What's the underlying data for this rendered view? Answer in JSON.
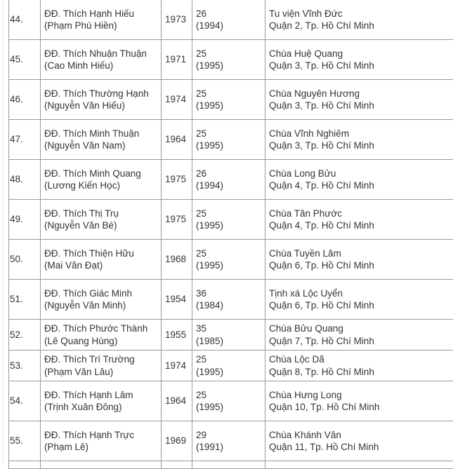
{
  "rows": [
    {
      "no": "44.",
      "title": "ĐĐ. Thích Hạnh Hiếu",
      "lay_name": "(Phạm Phú Hiền)",
      "birth_year": "1973",
      "age": "26",
      "year": "(1994)",
      "temple": "Tu viện Vĩnh Đức",
      "location": "Quận 2, Tp. Hồ Chí Minh"
    },
    {
      "no": "45.",
      "title": "ĐĐ. Thích Nhuận Thuận",
      "lay_name": "(Cao Minh Hiếu)",
      "birth_year": "1971",
      "age": "25",
      "year": "(1995)",
      "temple": "Chùa Huệ Quang",
      "location": "Quận 3, Tp. Hồ Chí Minh"
    },
    {
      "no": "46.",
      "title": "ĐĐ. Thích Thường Hạnh",
      "lay_name": "(Nguyễn Văn Hiếu)",
      "birth_year": "1974",
      "age": "25",
      "year": "(1995)",
      "temple": "Chùa Nguyên Hương",
      "location": "Quận 3, Tp. Hồ Chí Minh"
    },
    {
      "no": "47.",
      "title": "ĐĐ. Thích Minh Thuận",
      "lay_name": "(Nguyễn Văn Nam)",
      "birth_year": "1964",
      "age": "25",
      "year": "(1995)",
      "temple": "Chùa Vĩnh Nghiêm",
      "location": "Quận 3, Tp. Hồ Chí Minh"
    },
    {
      "no": "48.",
      "title": "ĐĐ. Thích Minh Quang",
      "lay_name": "(Lương Kiến Học)",
      "birth_year": "1975",
      "age": "26",
      "year": "(1994)",
      "temple": "Chùa Long Bửu",
      "location": "Quận 4, Tp. Hồ Chí Minh"
    },
    {
      "no": "49.",
      "title": "ĐĐ. Thích Thị Trụ",
      "lay_name": "(Nguyễn Văn Bé)",
      "birth_year": "1975",
      "age": "25",
      "year": "(1995)",
      "temple": "Chùa Tân Phước",
      "location": "Quận 4, Tp. Hồ Chí Minh"
    },
    {
      "no": "50.",
      "title": "ĐĐ. Thích Thiện Hữu",
      "lay_name": "(Mai Văn Đạt)",
      "birth_year": "1968",
      "age": "25",
      "year": "(1995)",
      "temple": "Chùa Tuyền Lâm",
      "location": "Quận 6, Tp. Hồ Chí Minh"
    },
    {
      "no": "51.",
      "title": "ĐĐ. Thích Giác Minh",
      "lay_name": "(Nguyễn Văn Minh)",
      "birth_year": "1954",
      "age": "36",
      "year": "(1984)",
      "temple": "Tịnh xá Lộc Uyển",
      "location": "Quận 6, Tp. Hồ Chí Minh"
    },
    {
      "no": "52.",
      "title": "ĐĐ. Thích Phước Thành",
      "lay_name": "(Lê Quang Hùng)",
      "birth_year": "1955",
      "age": "35",
      "year": "(1985)",
      "temple": "Chùa Bửu Quang",
      "location": "Quận 7, Tp. Hồ Chí Minh"
    },
    {
      "no": "53.",
      "title": "ĐĐ. Thích Trí Trường",
      "lay_name": "(Phạm Văn Lâu)",
      "birth_year": "1974",
      "age": "25",
      "year": "(1995)",
      "temple": "Chùa Lộc Dã",
      "location": "Quận 8, Tp. Hồ Chí Minh"
    },
    {
      "no": "54.",
      "title": "ĐĐ. Thích Hạnh Lâm",
      "lay_name": "(Trịnh Xuân Đông)",
      "birth_year": "1964",
      "age": "25",
      "year": "(1995)",
      "temple": "Chùa Hưng Long",
      "location": "Quận 10, Tp. Hồ Chí Minh"
    },
    {
      "no": "55.",
      "title": "ĐĐ. Thích Hạnh Trực",
      "lay_name": "(Phạm Lê)",
      "birth_year": "1969",
      "age": "29",
      "year": "(1991)",
      "temple": "Chùa Khánh Vân",
      "location": "Quận 11, Tp. Hồ Chí Minh"
    }
  ]
}
